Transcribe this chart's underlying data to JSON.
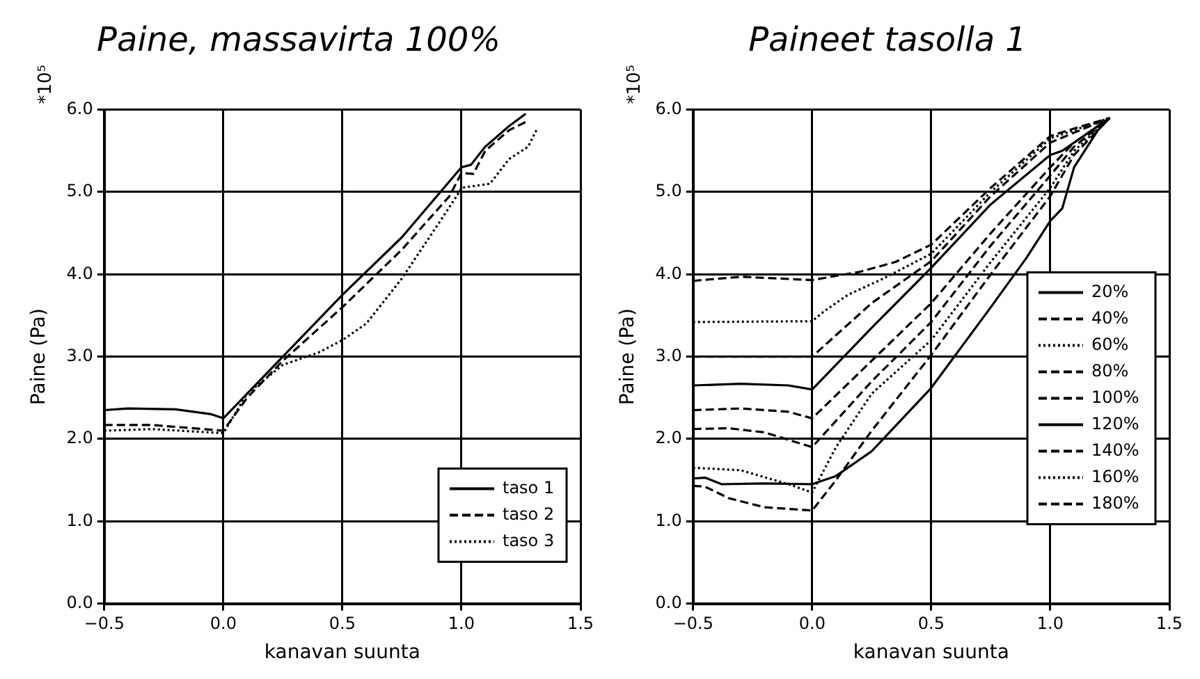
{
  "chart_data": [
    {
      "type": "line",
      "title": "Paine, massavirta 100%",
      "xlabel": "kanavan suunta",
      "ylabel": "Paine (Pa)",
      "annotations": [
        "*10⁵"
      ],
      "xlim": [
        -0.5,
        1.5
      ],
      "ylim": [
        0,
        6
      ],
      "xticks": [
        {
          "value": -0.5,
          "label": "−0.5"
        },
        {
          "value": 0,
          "label": "0.0"
        },
        {
          "value": 0.5,
          "label": "0.5"
        },
        {
          "value": 1,
          "label": "1.0"
        },
        {
          "value": 1.5,
          "label": "1.5"
        }
      ],
      "yticks": [
        {
          "value": 0,
          "label": "0.0"
        },
        {
          "value": 1,
          "label": "1.0"
        },
        {
          "value": 2,
          "label": "2.0"
        },
        {
          "value": 3,
          "label": "3.0"
        },
        {
          "value": 4,
          "label": "4.0"
        },
        {
          "value": 5,
          "label": "5.0"
        },
        {
          "value": 6,
          "label": "6.0"
        }
      ],
      "grid": true,
      "legend": "bottom right",
      "marker": "none",
      "series": [
        {
          "name": "taso 1",
          "color": "#000000",
          "line_style": "solid",
          "x": [
            -0.5,
            -0.4,
            -0.2,
            -0.05,
            0,
            0.1,
            0.25,
            0.5,
            0.75,
            1.0,
            1.04,
            1.1,
            1.2,
            1.27
          ],
          "values": [
            2.35,
            2.37,
            2.36,
            2.3,
            2.25,
            2.55,
            3.0,
            3.75,
            4.45,
            5.3,
            5.33,
            5.55,
            5.8,
            5.95
          ]
        },
        {
          "name": "taso 2",
          "color": "#000000",
          "line_style": "dashed",
          "x": [
            -0.5,
            -0.3,
            0,
            0.1,
            0.25,
            0.5,
            0.75,
            0.95,
            1.0,
            1.05,
            1.1,
            1.2,
            1.27
          ],
          "values": [
            2.17,
            2.17,
            2.1,
            2.5,
            2.95,
            3.6,
            4.3,
            4.95,
            5.23,
            5.22,
            5.5,
            5.75,
            5.85
          ]
        },
        {
          "name": "taso 3",
          "color": "#000000",
          "line_style": "dotted",
          "x": [
            -0.5,
            -0.3,
            0,
            0.1,
            0.25,
            0.4,
            0.5,
            0.6,
            0.75,
            0.9,
            0.98,
            1.0,
            1.12,
            1.2,
            1.28,
            1.32
          ],
          "values": [
            2.1,
            2.12,
            2.07,
            2.55,
            2.9,
            3.05,
            3.2,
            3.4,
            3.95,
            4.6,
            4.95,
            5.05,
            5.1,
            5.4,
            5.55,
            5.78
          ]
        }
      ]
    },
    {
      "type": "line",
      "title": "Paineet tasolla 1",
      "xlabel": "kanavan suunta",
      "ylabel": "Paine (Pa)",
      "annotations": [
        "*10⁵"
      ],
      "xlim": [
        -0.5,
        1.5
      ],
      "ylim": [
        0,
        6
      ],
      "xticks": [
        {
          "value": -0.5,
          "label": "−0.5"
        },
        {
          "value": 0,
          "label": "0.0"
        },
        {
          "value": 0.5,
          "label": "0.5"
        },
        {
          "value": 1,
          "label": "1.0"
        },
        {
          "value": 1.5,
          "label": "1.5"
        }
      ],
      "yticks": [
        {
          "value": 0,
          "label": "0.0"
        },
        {
          "value": 1,
          "label": "1.0"
        },
        {
          "value": 2,
          "label": "2.0"
        },
        {
          "value": 3,
          "label": "3.0"
        },
        {
          "value": 4,
          "label": "4.0"
        },
        {
          "value": 5,
          "label": "5.0"
        },
        {
          "value": 6,
          "label": "6.0"
        }
      ],
      "grid": true,
      "legend": "right",
      "marker": "none",
      "series": [
        {
          "name": "20%",
          "color": "#000000",
          "line_style": "solid",
          "x": [
            -0.5,
            -0.45,
            -0.38,
            -0.2,
            0,
            0.1,
            0.25,
            0.5,
            0.75,
            0.9,
            1.0,
            1.05,
            1.1,
            1.2,
            1.25
          ],
          "values": [
            1.52,
            1.53,
            1.45,
            1.46,
            1.45,
            1.55,
            1.85,
            2.62,
            3.6,
            4.2,
            4.65,
            4.8,
            5.3,
            5.75,
            5.9
          ]
        },
        {
          "name": "40%",
          "color": "#000000",
          "line_style": "dashed",
          "x": [
            -0.5,
            -0.45,
            -0.35,
            -0.2,
            0,
            0.1,
            0.25,
            0.5,
            0.75,
            1.0,
            1.1,
            1.25
          ],
          "values": [
            1.43,
            1.42,
            1.28,
            1.17,
            1.13,
            1.5,
            2.1,
            3.02,
            4.0,
            4.95,
            5.45,
            5.9
          ]
        },
        {
          "name": "60%",
          "color": "#000000",
          "line_style": "dotted",
          "x": [
            -0.5,
            -0.3,
            -0.1,
            0,
            0.1,
            0.25,
            0.5,
            0.75,
            1.0,
            1.1,
            1.25
          ],
          "values": [
            1.65,
            1.62,
            1.45,
            1.35,
            1.9,
            2.55,
            3.2,
            4.15,
            5.05,
            5.5,
            5.9
          ]
        },
        {
          "name": "80%",
          "color": "#000000",
          "line_style": "dashed",
          "x": [
            -0.5,
            -0.35,
            -0.2,
            0,
            0.25,
            0.5,
            0.75,
            1.0,
            1.1,
            1.25
          ],
          "values": [
            2.12,
            2.13,
            2.08,
            1.9,
            2.7,
            3.42,
            4.35,
            5.2,
            5.55,
            5.9
          ]
        },
        {
          "name": "100%",
          "color": "#000000",
          "line_style": "dashed",
          "x": [
            -0.5,
            -0.3,
            -0.1,
            0,
            0.25,
            0.5,
            0.75,
            1.0,
            1.1,
            1.25
          ],
          "values": [
            2.35,
            2.37,
            2.33,
            2.25,
            2.95,
            3.65,
            4.5,
            5.3,
            5.6,
            5.9
          ]
        },
        {
          "name": "120%",
          "color": "#000000",
          "line_style": "solid",
          "x": [
            -0.5,
            -0.3,
            -0.1,
            0,
            0.25,
            0.5,
            0.75,
            1.0,
            1.05,
            1.25
          ],
          "values": [
            2.65,
            2.67,
            2.65,
            2.6,
            3.35,
            4.08,
            4.85,
            5.45,
            5.5,
            5.9
          ]
        },
        {
          "name": "140%",
          "color": "#000000",
          "line_style": "dashed",
          "x": [
            -0.5,
            0,
            0.25,
            0.5,
            0.75,
            1.0,
            1.25
          ],
          "values": [
            3.0,
            3.0,
            3.65,
            4.16,
            4.95,
            5.6,
            5.9
          ]
        },
        {
          "name": "160%",
          "color": "#000000",
          "line_style": "dotted",
          "x": [
            -0.5,
            0,
            0.05,
            0.15,
            0.3,
            0.5,
            0.75,
            1.0,
            1.25
          ],
          "values": [
            3.42,
            3.43,
            3.55,
            3.75,
            3.95,
            4.25,
            5.0,
            5.65,
            5.9
          ]
        },
        {
          "name": "180%",
          "color": "#000000",
          "line_style": "dashed",
          "x": [
            -0.5,
            -0.3,
            0,
            0.2,
            0.35,
            0.5,
            0.75,
            1.0,
            1.1,
            1.25
          ],
          "values": [
            3.92,
            3.97,
            3.93,
            4.03,
            4.15,
            4.36,
            5.05,
            5.68,
            5.77,
            5.9
          ]
        }
      ]
    }
  ]
}
